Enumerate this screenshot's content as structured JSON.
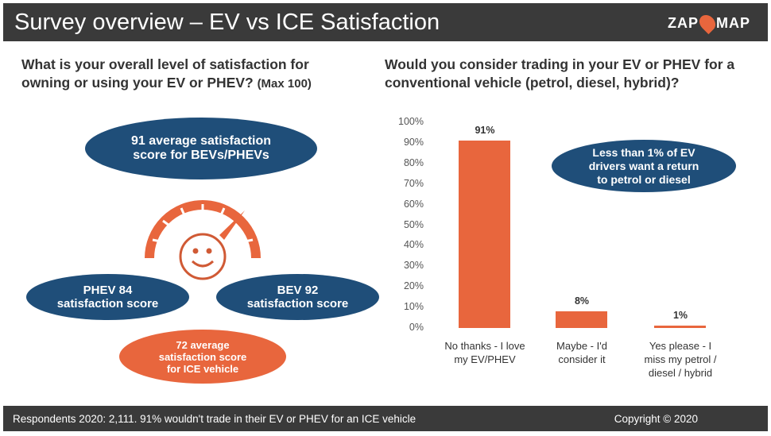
{
  "header": {
    "title": "Survey overview – EV vs ICE Satisfaction",
    "logo": "ZAP MAP"
  },
  "left": {
    "question": "What is your overall level of satisfaction for owning or using your EV or PHEV?",
    "question_suffix": "(Max 100)",
    "avg": "91 average satisfaction score for BEVs/PHEVs",
    "phev": "PHEV 84 satisfaction score",
    "bev": "BEV 92 satisfaction score",
    "ice": "72 average satisfaction score for ICE vehicle"
  },
  "colors": {
    "navy": "#1f4e79",
    "orange": "#e8663d",
    "header": "#3a3a3a"
  },
  "chart_data": {
    "type": "bar",
    "title": "Would you consider trading in your EV or PHEV for a conventional vehicle (petrol, diesel, hybrid)?",
    "categories": [
      "No thanks - I love my EV/PHEV",
      "Maybe - I'd consider it",
      "Yes please - I miss my petrol / diesel / hybrid"
    ],
    "values": [
      91,
      8,
      1
    ],
    "data_labels": [
      "91%",
      "8%",
      "1%"
    ],
    "yticks": [
      "0%",
      "10%",
      "20%",
      "30%",
      "40%",
      "50%",
      "60%",
      "70%",
      "80%",
      "90%",
      "100%"
    ],
    "ylim": [
      0,
      100
    ],
    "grid": false,
    "annotation": "Less than 1% of EV drivers want a return to petrol or diesel"
  },
  "footer": {
    "left": "Respondents 2020: 2,111. 91% wouldn't trade in their EV or PHEV for an ICE vehicle",
    "right": "Copyright © 2020"
  }
}
